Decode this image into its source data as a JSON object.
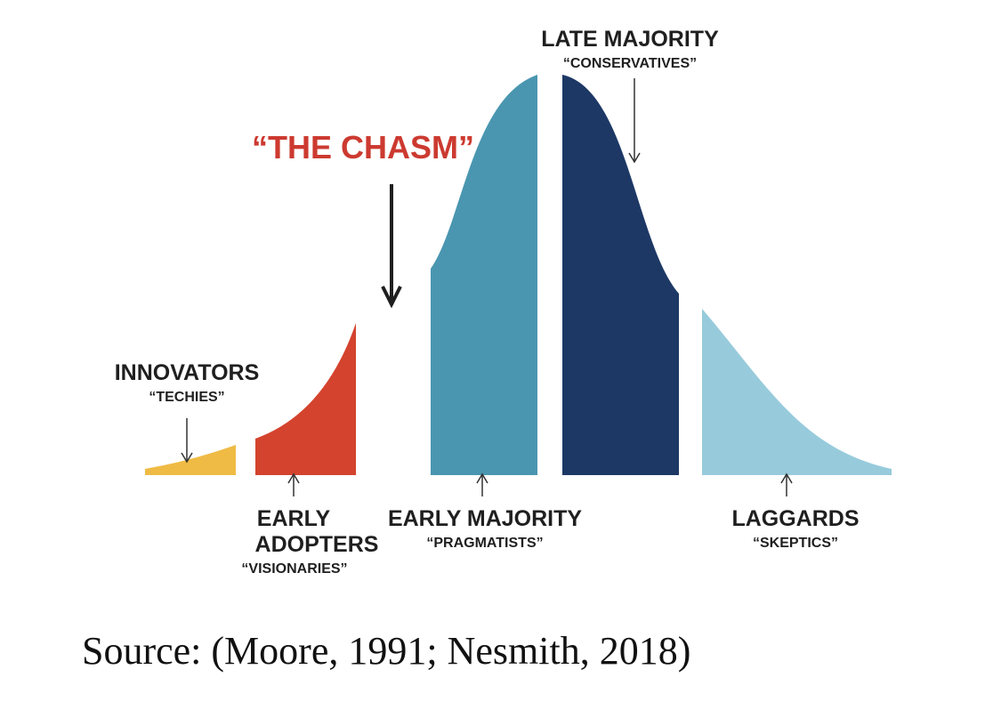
{
  "chasm_label": "“THE CHASM”",
  "segments": [
    {
      "id": "innovators",
      "title": "INNOVATORS",
      "subtitle": "“TECHIES”",
      "color": "#efbb45"
    },
    {
      "id": "early-adopters",
      "title_lines": [
        "EARLY",
        "ADOPTERS"
      ],
      "subtitle": "“VISIONARIES”",
      "color": "#d4432e"
    },
    {
      "id": "early-majority",
      "title": "EARLY MAJORITY",
      "subtitle": "“PRAGMATISTS”",
      "color": "#4a96b0"
    },
    {
      "id": "late-majority",
      "title": "LATE MAJORITY",
      "subtitle": "“CONSERVATIVES”",
      "color": "#1d3865"
    },
    {
      "id": "laggards",
      "title": "LAGGARDS",
      "subtitle": "“SKEPTICS”",
      "color": "#97cbdc"
    }
  ],
  "colors": {
    "chasm": "#cc3a30",
    "text": "#1f1f1f",
    "arrow": "#333333"
  },
  "source": "Source: (Moore, 1991; Nesmith, 2018)"
}
